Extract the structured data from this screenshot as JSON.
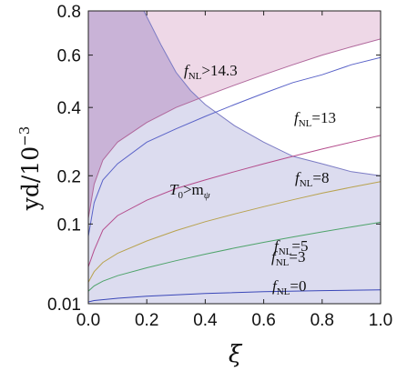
{
  "chart_data": {
    "type": "area",
    "title": "",
    "xlabel": "ξ",
    "ylabel": "yd/10",
    "ylabel_exponent": "−3",
    "xlim": [
      0,
      1
    ],
    "ylim": [
      0.01,
      0.8
    ],
    "y_scale": "sqrt",
    "x_ticks": [
      "0.0",
      "0.2",
      "0.4",
      "0.6",
      "0.8",
      "1.0"
    ],
    "y_ticks": [
      {
        "value": 0.01,
        "label": "0.01"
      },
      {
        "value": 0.1,
        "label": "0.1"
      },
      {
        "value": 0.2,
        "label": "0.2"
      },
      {
        "value": 0.4,
        "label": "0.4"
      },
      {
        "value": 0.6,
        "label": "0.6"
      },
      {
        "value": 0.8,
        "label": "0.8"
      }
    ],
    "grid": false,
    "regions": [
      {
        "label_main": "T",
        "label_sub": "0",
        "label_rest": ">m",
        "label_rest_sub": "ψ",
        "color": "#dcdcef",
        "edge_color": "#7b7bc4",
        "boundary": [
          [
            0.19,
            0.8
          ],
          [
            0.25,
            0.64
          ],
          [
            0.3,
            0.53
          ],
          [
            0.35,
            0.46
          ],
          [
            0.4,
            0.41
          ],
          [
            0.5,
            0.34
          ],
          [
            0.6,
            0.29
          ],
          [
            0.7,
            0.25
          ],
          [
            0.8,
            0.23
          ],
          [
            0.9,
            0.21
          ],
          [
            1.0,
            0.2
          ]
        ]
      },
      {
        "label_main": "f",
        "label_sub": "NL",
        "label_rest": ">14.3",
        "color": "#eed8e7",
        "edge_color": "#b0689c",
        "boundary": [
          [
            0.0,
            0.11
          ],
          [
            0.02,
            0.18
          ],
          [
            0.05,
            0.24
          ],
          [
            0.1,
            0.29
          ],
          [
            0.2,
            0.35
          ],
          [
            0.3,
            0.4
          ],
          [
            0.4,
            0.44
          ],
          [
            0.5,
            0.48
          ],
          [
            0.6,
            0.52
          ],
          [
            0.7,
            0.56
          ],
          [
            0.8,
            0.6
          ],
          [
            0.9,
            0.635
          ],
          [
            1.0,
            0.67
          ]
        ]
      }
    ],
    "overlap_color": "#c9b3d7",
    "series": [
      {
        "name_main": "f",
        "name_sub": "NL",
        "name_rest": "=13",
        "color": "#5a63c8",
        "points": [
          [
            0.0,
            0.08
          ],
          [
            0.02,
            0.14
          ],
          [
            0.05,
            0.19
          ],
          [
            0.1,
            0.23
          ],
          [
            0.2,
            0.29
          ],
          [
            0.3,
            0.33
          ],
          [
            0.4,
            0.37
          ],
          [
            0.5,
            0.41
          ],
          [
            0.6,
            0.45
          ],
          [
            0.7,
            0.49
          ],
          [
            0.8,
            0.52
          ],
          [
            0.9,
            0.56
          ],
          [
            1.0,
            0.59
          ]
        ]
      },
      {
        "name_main": "f",
        "name_sub": "NL",
        "name_rest": "=8",
        "color": "#b44c8c",
        "points": [
          [
            0.0,
            0.04
          ],
          [
            0.02,
            0.06
          ],
          [
            0.05,
            0.09
          ],
          [
            0.1,
            0.115
          ],
          [
            0.2,
            0.145
          ],
          [
            0.3,
            0.17
          ],
          [
            0.4,
            0.19
          ],
          [
            0.5,
            0.21
          ],
          [
            0.6,
            0.23
          ],
          [
            0.7,
            0.25
          ],
          [
            0.8,
            0.27
          ],
          [
            0.9,
            0.29
          ],
          [
            1.0,
            0.31
          ]
        ]
      },
      {
        "name_main": "f",
        "name_sub": "NL",
        "name_rest": "=5",
        "color": "#b8a24e",
        "points": [
          [
            0.0,
            0.025
          ],
          [
            0.02,
            0.035
          ],
          [
            0.05,
            0.045
          ],
          [
            0.1,
            0.056
          ],
          [
            0.2,
            0.073
          ],
          [
            0.3,
            0.089
          ],
          [
            0.4,
            0.104
          ],
          [
            0.5,
            0.118
          ],
          [
            0.6,
            0.132
          ],
          [
            0.7,
            0.146
          ],
          [
            0.8,
            0.16
          ],
          [
            0.9,
            0.173
          ],
          [
            1.0,
            0.186
          ]
        ]
      },
      {
        "name_main": "f",
        "name_sub": "NL",
        "name_rest": "=3",
        "color": "#4ea36a",
        "points": [
          [
            0.0,
            0.018
          ],
          [
            0.02,
            0.022
          ],
          [
            0.05,
            0.026
          ],
          [
            0.1,
            0.031
          ],
          [
            0.2,
            0.039
          ],
          [
            0.3,
            0.047
          ],
          [
            0.4,
            0.055
          ],
          [
            0.5,
            0.063
          ],
          [
            0.6,
            0.071
          ],
          [
            0.7,
            0.079
          ],
          [
            0.8,
            0.087
          ],
          [
            0.9,
            0.095
          ],
          [
            1.0,
            0.103
          ]
        ]
      },
      {
        "name_main": "f",
        "name_sub": "NL",
        "name_rest": "=0",
        "color": "#3a47b8",
        "points": [
          [
            0.0,
            0.011
          ],
          [
            0.02,
            0.0118
          ],
          [
            0.1,
            0.0132
          ],
          [
            0.2,
            0.0145
          ],
          [
            0.4,
            0.0163
          ],
          [
            0.6,
            0.0176
          ],
          [
            0.8,
            0.0184
          ],
          [
            1.0,
            0.019
          ]
        ]
      }
    ]
  }
}
